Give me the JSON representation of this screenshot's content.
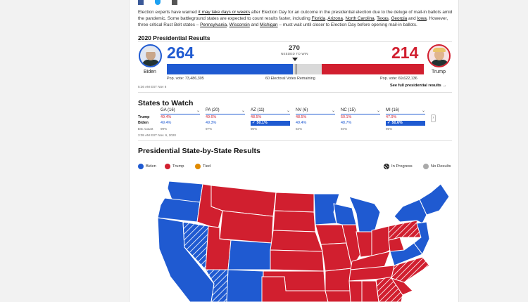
{
  "article": {
    "intro_parts": [
      "Election experts have warned ",
      "it may take days or weeks",
      " after Election Day for an outcome in the presidential election due to the deluge of mail-in ballots amid the pandemic. Some battleground states are expected to count results faster, including ",
      "Florida",
      ", ",
      "Arizona",
      ", ",
      "North Carolina",
      ", ",
      "Texas",
      ", ",
      "Georgia",
      " and ",
      "Iowa",
      ". However, three critical Rust Belt states – ",
      "Pennsylvania",
      ", ",
      "Wisconsin",
      " and ",
      "Michigan",
      " – must wait until closer to Election Day before opening mail-in ballots."
    ]
  },
  "results": {
    "title": "2020 Presidential Results",
    "biden": {
      "name": "Biden",
      "ev": "264",
      "pop_vote": "Pop. vote: 73,486,305",
      "color": "#1f5ad1"
    },
    "trump": {
      "name": "Trump",
      "ev": "214",
      "pop_vote": "Pop. vote: 69,622,136",
      "color": "#d11f2f"
    },
    "to_win": "270",
    "to_win_label": "NEEDED TO WIN",
    "remaining": "60 Electoral Votes Remaining",
    "timestamp": "5:36 AM EST Nov 6",
    "see_full": "See full presidential results"
  },
  "states_to_watch": {
    "title": "States to Watch",
    "row_labels": {
      "trump": "Trump",
      "biden": "Biden",
      "count": "Est. Count"
    },
    "timestamp": "3:05 AM EST Nov. 6, 2020",
    "states": [
      {
        "name": "GA (16)",
        "trump": "49.4%",
        "biden": "49.4%",
        "count": "99%",
        "winner": ""
      },
      {
        "name": "PA (20)",
        "trump": "49.6%",
        "biden": "49.3%",
        "count": "97%",
        "winner": ""
      },
      {
        "name": "AZ (11)",
        "trump": "48.5%",
        "biden": "50.1%",
        "count": "90%",
        "winner": "biden"
      },
      {
        "name": "NV (6)",
        "trump": "48.5%",
        "biden": "49.4%",
        "count": "84%",
        "winner": ""
      },
      {
        "name": "NC (15)",
        "trump": "50.1%",
        "biden": "48.7%",
        "count": "94%",
        "winner": ""
      },
      {
        "name": "MI (16)",
        "trump": "47.9%",
        "biden": "50.6%",
        "count": "95%",
        "winner": "biden"
      }
    ],
    "check_mark": "✓"
  },
  "state_map": {
    "title": "Presidential State-by-State Results",
    "legend": [
      {
        "label": "Biden",
        "color": "#1f5ad1"
      },
      {
        "label": "Trump",
        "color": "#d11f2f"
      },
      {
        "label": "Tied",
        "color": "#e08a00"
      },
      {
        "label": "In Progress",
        "color": "#222"
      },
      {
        "label": "No Results",
        "color": "#aaaaaa"
      }
    ]
  },
  "icons": [
    "facebook-icon",
    "twitter-icon",
    "email-icon",
    "chevron-down-icon",
    "checkmark-icon",
    "arrow-right-icon"
  ]
}
